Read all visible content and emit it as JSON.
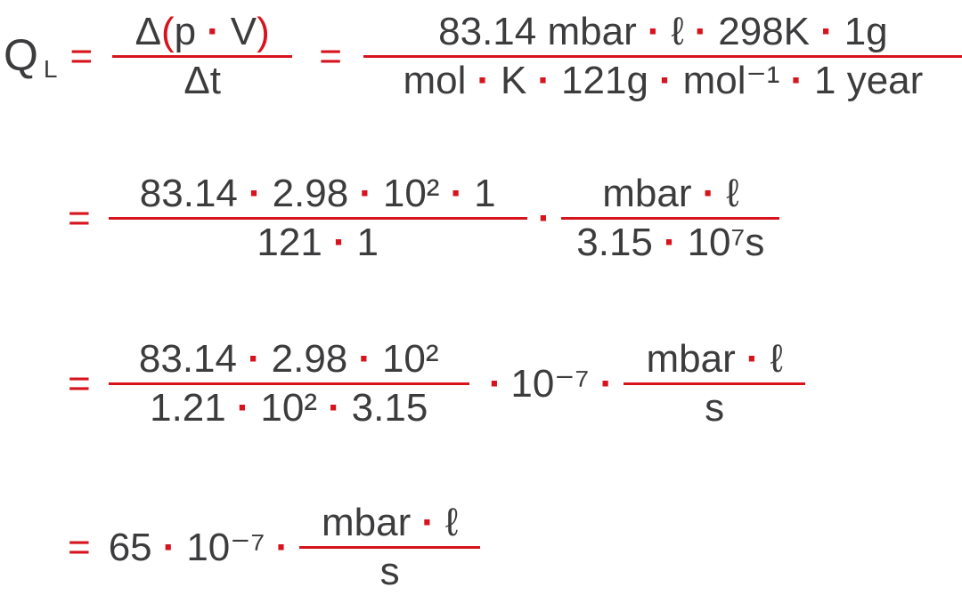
{
  "symbols": {
    "dot": "·",
    "equals": "="
  },
  "line1": {
    "lhs": "Q",
    "lhs_subscript": "L",
    "frac1": {
      "num_delta": "Δ",
      "num_open": "(",
      "num_p": "p",
      "num_v": "V",
      "num_close": ")",
      "den": "Δt"
    },
    "frac2": {
      "num": [
        "83.14 mbar",
        "ℓ",
        "298K",
        "1g"
      ],
      "den": [
        "mol",
        "K",
        "121g",
        "mol⁻¹",
        "1 year"
      ]
    }
  },
  "line2": {
    "frac1": {
      "num": [
        "83.14",
        "2.98",
        "10²",
        "1"
      ],
      "den": [
        "121",
        "1"
      ]
    },
    "frac2": {
      "num": [
        "mbar",
        "ℓ"
      ],
      "den": [
        "3.15",
        "10⁷s"
      ]
    }
  },
  "line3": {
    "frac1": {
      "num": [
        "83.14",
        "2.98",
        "10²"
      ],
      "den": [
        "1.21",
        "10²",
        "3.15"
      ]
    },
    "factor": "10⁻⁷",
    "frac2": {
      "num": [
        "mbar",
        "ℓ"
      ],
      "den": "s"
    }
  },
  "line4": {
    "value": "65",
    "factor": "10⁻⁷",
    "frac": {
      "num": [
        "mbar",
        "ℓ"
      ],
      "den": "s"
    }
  },
  "colors": {
    "accent": "#d7141e",
    "text": "#3c3c3e",
    "background": "#ffffff"
  }
}
